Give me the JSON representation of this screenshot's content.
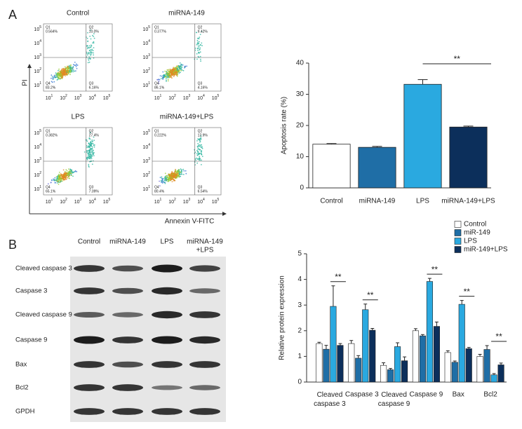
{
  "panel_labels": [
    "A",
    "B"
  ],
  "flow": {
    "x_label": "Annexin V-FITC",
    "y_label": "PI",
    "tick_base": "10",
    "tick_exps": [
      "1",
      "2",
      "3",
      "4",
      "5"
    ],
    "quadrants": [
      "Q1",
      "Q2",
      "Q3",
      "Q4"
    ],
    "plots": [
      {
        "title": "Control",
        "percents": [
          "0.564%",
          "10.0%",
          "6.16%",
          "83.2%"
        ]
      },
      {
        "title": "miRNA-149",
        "percents": [
          "0.377%",
          "9.42%",
          "4.16%",
          "86.1%"
        ]
      },
      {
        "title": "LPS",
        "percents": [
          "0.382%",
          "27.4%",
          "7.09%",
          "65.1%"
        ]
      },
      {
        "title": "miRNA-149+LPS",
        "percents": [
          "0.222%",
          "12.9%",
          "6.54%",
          "80.4%"
        ]
      }
    ]
  },
  "blot": {
    "columns": [
      [
        "Control"
      ],
      [
        "miRNA-149"
      ],
      [
        "LPS"
      ],
      [
        "miRNA-149",
        "+LPS"
      ]
    ],
    "rows": [
      "Cleaved caspase 3",
      "Caspase 3",
      "Cleaved caspase 9",
      "Caspase 9",
      "Bax",
      "Bcl2",
      "GPDH"
    ]
  },
  "chart_data": [
    {
      "type": "bar",
      "y_label": "Apoptosis rate (%)",
      "categories": [
        "Control",
        "miRNA-149",
        "LPS",
        "miRNA-149+LPS"
      ],
      "values": [
        14,
        13,
        33.2,
        19.5
      ],
      "errors": [
        0.2,
        0.3,
        1.5,
        0.3
      ],
      "colors": [
        "#ffffff",
        "#1f6ea6",
        "#2aa9e0",
        "#0c2f5b"
      ],
      "ylim": [
        0,
        40
      ],
      "yticks": [
        0,
        10,
        20,
        30,
        40
      ],
      "annotations": [
        {
          "text": "**",
          "from": 2,
          "to": 3
        }
      ]
    },
    {
      "type": "grouped_bar",
      "y_label": "Relative protein expression",
      "categories": [
        "Cleaved caspase 3",
        "Caspase 3",
        "Cleaved caspase 9",
        "Caspase 9",
        "Bax",
        "Bcl2"
      ],
      "series": [
        {
          "name": "Control",
          "color": "#ffffff",
          "values": [
            1.5,
            1.5,
            0.65,
            2.0,
            1.15,
            1.0
          ],
          "errors": [
            0.05,
            0.12,
            0.1,
            0.08,
            0.07,
            0.08
          ]
        },
        {
          "name": "miR-149",
          "color": "#1f6ea6",
          "values": [
            1.28,
            0.93,
            0.48,
            1.8,
            0.77,
            1.27
          ],
          "errors": [
            0.15,
            0.1,
            0.05,
            0.05,
            0.05,
            0.15
          ]
        },
        {
          "name": "LPS",
          "color": "#2aa9e0",
          "values": [
            2.95,
            2.82,
            1.38,
            3.92,
            3.03,
            0.28
          ],
          "errors": [
            0.8,
            0.22,
            0.15,
            0.12,
            0.15,
            0.05
          ]
        },
        {
          "name": "miR-149+LPS",
          "color": "#0c2f5b",
          "values": [
            1.43,
            2.02,
            0.83,
            2.17,
            1.3,
            0.67
          ],
          "errors": [
            0.07,
            0.07,
            0.15,
            0.17,
            0.05,
            0.07
          ]
        }
      ],
      "ylim": [
        0,
        5
      ],
      "yticks": [
        0,
        1,
        2,
        3,
        4,
        5
      ],
      "legend": "top-right",
      "annotations": [
        {
          "text": "**",
          "category": 0
        },
        {
          "text": "**",
          "category": 1
        },
        {
          "text": "**",
          "category": 3
        },
        {
          "text": "**",
          "category": 4
        },
        {
          "text": "**",
          "category": 5
        }
      ]
    }
  ]
}
